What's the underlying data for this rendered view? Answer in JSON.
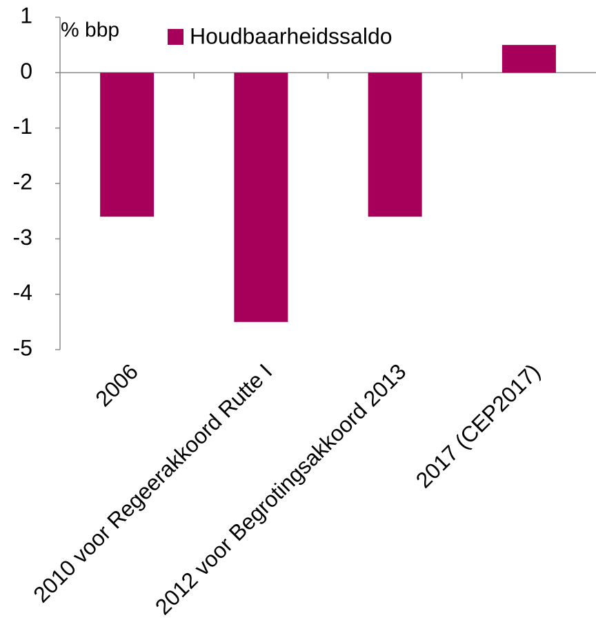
{
  "chart_data": {
    "type": "bar",
    "y_axis_label": "% bbp",
    "categories": [
      "2006",
      "2010 voor Regeerakkoord Rutte I",
      "2012 voor Begrotingsakkoord 2013",
      "2017 (CEP2017)"
    ],
    "series": [
      {
        "name": "Houdbaarheidssaldo",
        "color": "#a6005b",
        "values": [
          -2.6,
          -4.5,
          -2.6,
          0.5
        ]
      }
    ],
    "ylim": [
      -5,
      1
    ],
    "yticks": [
      -5,
      -4,
      -3,
      -2,
      -1,
      0,
      1
    ],
    "grid": false,
    "legend": "top"
  }
}
